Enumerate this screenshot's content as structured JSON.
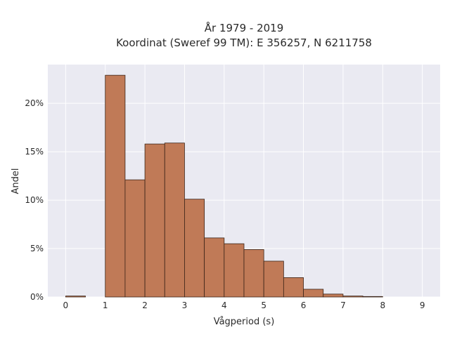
{
  "chart_data": {
    "type": "bar",
    "title": "År 1979 - 2019",
    "subtitle": "Koordinat (Sweref 99 TM): E 356257, N 6211758",
    "xlabel": "Vågperiod (s)",
    "ylabel": "Andel",
    "bin_width": 0.5,
    "bins": [
      {
        "x0": 0.0,
        "x1": 0.5,
        "value": 0.001
      },
      {
        "x0": 1.0,
        "x1": 1.5,
        "value": 0.229
      },
      {
        "x0": 1.5,
        "x1": 2.0,
        "value": 0.121
      },
      {
        "x0": 2.0,
        "x1": 2.5,
        "value": 0.158
      },
      {
        "x0": 2.5,
        "x1": 3.0,
        "value": 0.159
      },
      {
        "x0": 3.0,
        "x1": 3.5,
        "value": 0.101
      },
      {
        "x0": 3.5,
        "x1": 4.0,
        "value": 0.061
      },
      {
        "x0": 4.0,
        "x1": 4.5,
        "value": 0.055
      },
      {
        "x0": 4.5,
        "x1": 5.0,
        "value": 0.049
      },
      {
        "x0": 5.0,
        "x1": 5.5,
        "value": 0.037
      },
      {
        "x0": 5.5,
        "x1": 6.0,
        "value": 0.02
      },
      {
        "x0": 6.0,
        "x1": 6.5,
        "value": 0.008
      },
      {
        "x0": 6.5,
        "x1": 7.0,
        "value": 0.003
      },
      {
        "x0": 7.0,
        "x1": 7.5,
        "value": 0.001
      },
      {
        "x0": 7.5,
        "x1": 8.0,
        "value": 0.0005
      }
    ],
    "xlim": [
      -0.45,
      9.45
    ],
    "ylim": [
      0,
      0.24
    ],
    "xticks": [
      0,
      1,
      2,
      3,
      4,
      5,
      6,
      7,
      8,
      9
    ],
    "xtick_labels": [
      "0",
      "1",
      "2",
      "3",
      "4",
      "5",
      "6",
      "7",
      "8",
      "9"
    ],
    "yticks": [
      0,
      0.05,
      0.1,
      0.15,
      0.2
    ],
    "ytick_labels": [
      "0%",
      "5%",
      "10%",
      "15%",
      "20%"
    ],
    "grid": true,
    "colors": {
      "bar_fill": "#c07a57",
      "bar_edge": "#3b2418",
      "plot_bg": "#eaeaf2",
      "grid": "#ffffff"
    }
  }
}
